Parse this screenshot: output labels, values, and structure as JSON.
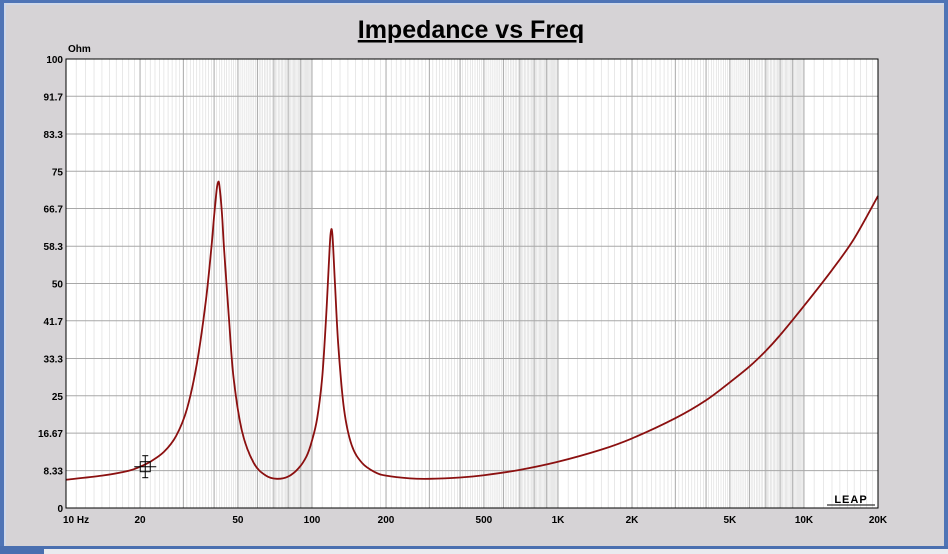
{
  "chart_data": {
    "type": "line",
    "title": "Impedance vs Freq",
    "ylabel": "Ohm",
    "xlabel": "",
    "x_scale": "log",
    "xlim": [
      10,
      20000
    ],
    "ylim": [
      0,
      100
    ],
    "grid": true,
    "y_ticks": [
      {
        "value": 0,
        "label": "0"
      },
      {
        "value": 8.33,
        "label": "8.33"
      },
      {
        "value": 16.67,
        "label": "16.67"
      },
      {
        "value": 25,
        "label": "25"
      },
      {
        "value": 33.3,
        "label": "33.3"
      },
      {
        "value": 41.7,
        "label": "41.7"
      },
      {
        "value": 50,
        "label": "50"
      },
      {
        "value": 58.3,
        "label": "58.3"
      },
      {
        "value": 66.7,
        "label": "66.7"
      },
      {
        "value": 75,
        "label": "75"
      },
      {
        "value": 83.3,
        "label": "83.3"
      },
      {
        "value": 91.7,
        "label": "91.7"
      },
      {
        "value": 100,
        "label": "100"
      }
    ],
    "x_ticks": [
      {
        "value": 10,
        "label": "10  Hz"
      },
      {
        "value": 20,
        "label": "20"
      },
      {
        "value": 50,
        "label": "50"
      },
      {
        "value": 100,
        "label": "100"
      },
      {
        "value": 200,
        "label": "200"
      },
      {
        "value": 500,
        "label": "500"
      },
      {
        "value": 1000,
        "label": "1K"
      },
      {
        "value": 2000,
        "label": "2K"
      },
      {
        "value": 5000,
        "label": "5K"
      },
      {
        "value": 10000,
        "label": "10K"
      },
      {
        "value": 20000,
        "label": "20K"
      }
    ],
    "series": [
      {
        "color": "#8b1010",
        "x": [
          10,
          14,
          18,
          20,
          22,
          25,
          28,
          31,
          34,
          37,
          39,
          40,
          41,
          41.5,
          42,
          43,
          44,
          46,
          48,
          52,
          58,
          65,
          72,
          80,
          88,
          95,
          100,
          105,
          110,
          114,
          117,
          119,
          121,
          124,
          128,
          135,
          145,
          160,
          180,
          200,
          250,
          300,
          400,
          500,
          700,
          1000,
          1500,
          2000,
          3000,
          4000,
          5000,
          6000,
          7000,
          8000,
          10000,
          13000,
          16000,
          20000
        ],
        "y": [
          6.3,
          7.2,
          8.3,
          9.2,
          10.3,
          12.5,
          16.0,
          22.0,
          32.0,
          46.0,
          58.0,
          65.0,
          71.0,
          72.5,
          72.0,
          66.0,
          57.0,
          42.0,
          29.0,
          17.0,
          10.0,
          7.2,
          6.5,
          7.0,
          8.8,
          11.5,
          15.0,
          20.0,
          29.0,
          42.0,
          54.0,
          61.0,
          61.0,
          50.0,
          36.0,
          22.0,
          14.0,
          10.0,
          8.0,
          7.2,
          6.6,
          6.5,
          6.8,
          7.3,
          8.5,
          10.3,
          13.0,
          15.5,
          20.0,
          24.0,
          28.0,
          31.5,
          35.0,
          38.5,
          45.0,
          53.0,
          60.0,
          69.5
        ]
      }
    ],
    "cursor_marker": {
      "x": 21,
      "y": 9.2
    },
    "logo": "LEAP"
  }
}
